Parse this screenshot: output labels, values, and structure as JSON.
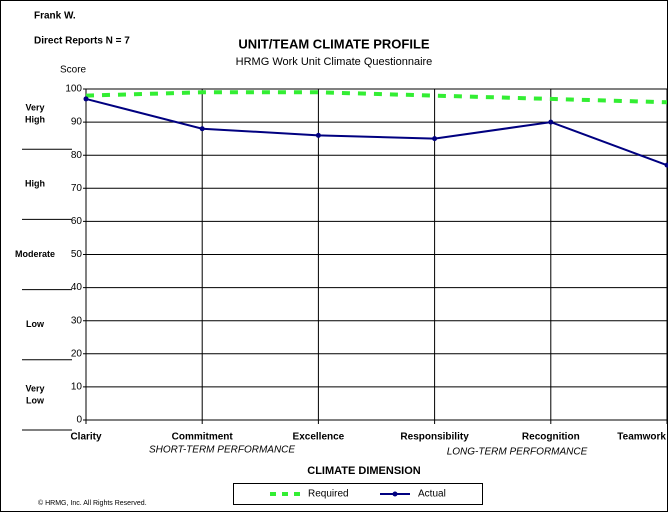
{
  "header": {
    "person": "Frank W.",
    "reports": "Direct Reports N = 7",
    "copyright": "© HRMG, Inc.  All Rights Reserved."
  },
  "bands": [
    {
      "lines": [
        "Very",
        "High"
      ]
    },
    {
      "lines": [
        "High"
      ]
    },
    {
      "lines": [
        "Moderate"
      ]
    },
    {
      "lines": [
        "Low"
      ]
    },
    {
      "lines": [
        "Very",
        "Low"
      ]
    }
  ],
  "chart_data": {
    "type": "line",
    "title": "UNIT/TEAM CLIMATE PROFILE",
    "subtitle": "HRMG Work Unit Climate Questionnaire",
    "y_label": "Score",
    "x_label": "CLIMATE DIMENSION",
    "annotations": [
      "SHORT-TERM PERFORMANCE",
      "LONG-TERM PERFORMANCE"
    ],
    "categories": [
      "Clarity",
      "Commitment",
      "Excellence",
      "Responsibility",
      "Recognition",
      "Teamwork"
    ],
    "series": [
      {
        "name": "Required",
        "color": "#33ee33",
        "dashed": true,
        "values": [
          98,
          99,
          99,
          98,
          97,
          96
        ]
      },
      {
        "name": "Actual",
        "color": "#000080",
        "dashed": false,
        "values": [
          97,
          88,
          86,
          85,
          90,
          77
        ]
      }
    ],
    "ylim": [
      0,
      100
    ],
    "yticks": [
      0,
      10,
      20,
      30,
      40,
      50,
      60,
      70,
      80,
      90,
      100
    ],
    "grid": true,
    "legend": "bottom"
  }
}
